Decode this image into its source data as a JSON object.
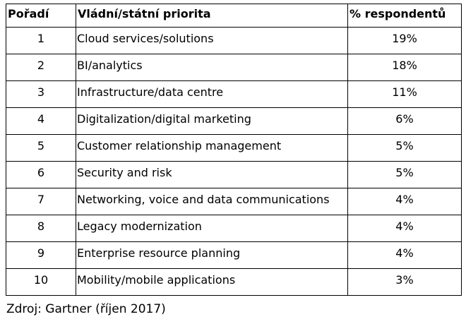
{
  "table": {
    "headers": {
      "rank": "Pořadí",
      "priority": "Vládní/státní priorita",
      "percent": "% respondentů"
    },
    "rows": [
      {
        "rank": "1",
        "priority": "Cloud services/solutions",
        "percent": "19%"
      },
      {
        "rank": "2",
        "priority": "BI/analytics",
        "percent": "18%"
      },
      {
        "rank": "3",
        "priority": "Infrastructure/data centre",
        "percent": "11%"
      },
      {
        "rank": "4",
        "priority": "Digitalization/digital marketing",
        "percent": "6%"
      },
      {
        "rank": "5",
        "priority": "Customer relationship management",
        "percent": "5%"
      },
      {
        "rank": "6",
        "priority": "Security and risk",
        "percent": "5%"
      },
      {
        "rank": "7",
        "priority": "Networking, voice and data communications",
        "percent": "4%"
      },
      {
        "rank": "8",
        "priority": "Legacy modernization",
        "percent": "4%"
      },
      {
        "rank": "9",
        "priority": "Enterprise resource planning",
        "percent": "4%"
      },
      {
        "rank": "10",
        "priority": "Mobility/mobile applications",
        "percent": "3%"
      }
    ]
  },
  "source": "Zdroj: Gartner (říjen 2017)"
}
